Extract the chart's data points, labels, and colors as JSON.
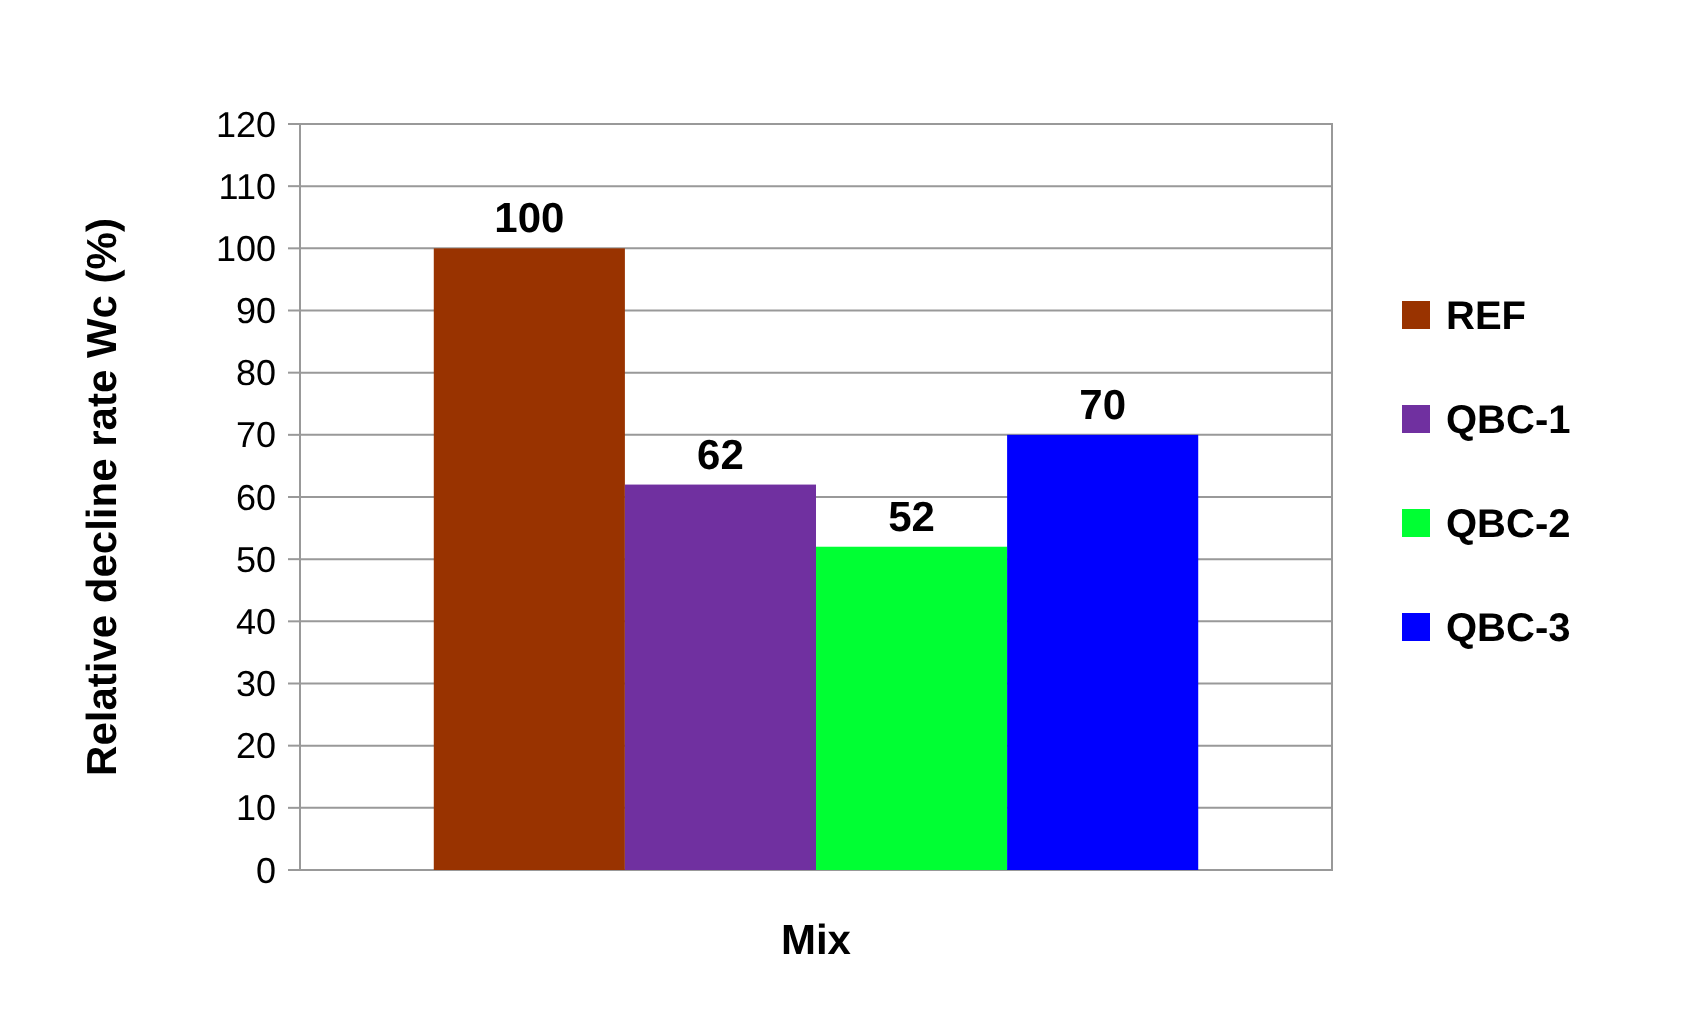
{
  "chart_data": {
    "type": "bar",
    "ylabel": "Relative decline rate Wc (%)",
    "categories": [
      "Mix"
    ],
    "series": [
      {
        "name": "REF",
        "color": "#993300",
        "values": [
          100
        ]
      },
      {
        "name": "QBC-1",
        "color": "#7030a0",
        "values": [
          62
        ]
      },
      {
        "name": "QBC-2",
        "color": "#00ff33",
        "values": [
          52
        ]
      },
      {
        "name": "QBC-3",
        "color": "#0000ff",
        "values": [
          70
        ]
      }
    ],
    "ylim": [
      0,
      120
    ],
    "yticks": [
      0,
      10,
      20,
      30,
      40,
      50,
      60,
      70,
      80,
      90,
      100,
      110,
      120
    ],
    "grid": "y",
    "legend": "right",
    "data_labels": true
  }
}
